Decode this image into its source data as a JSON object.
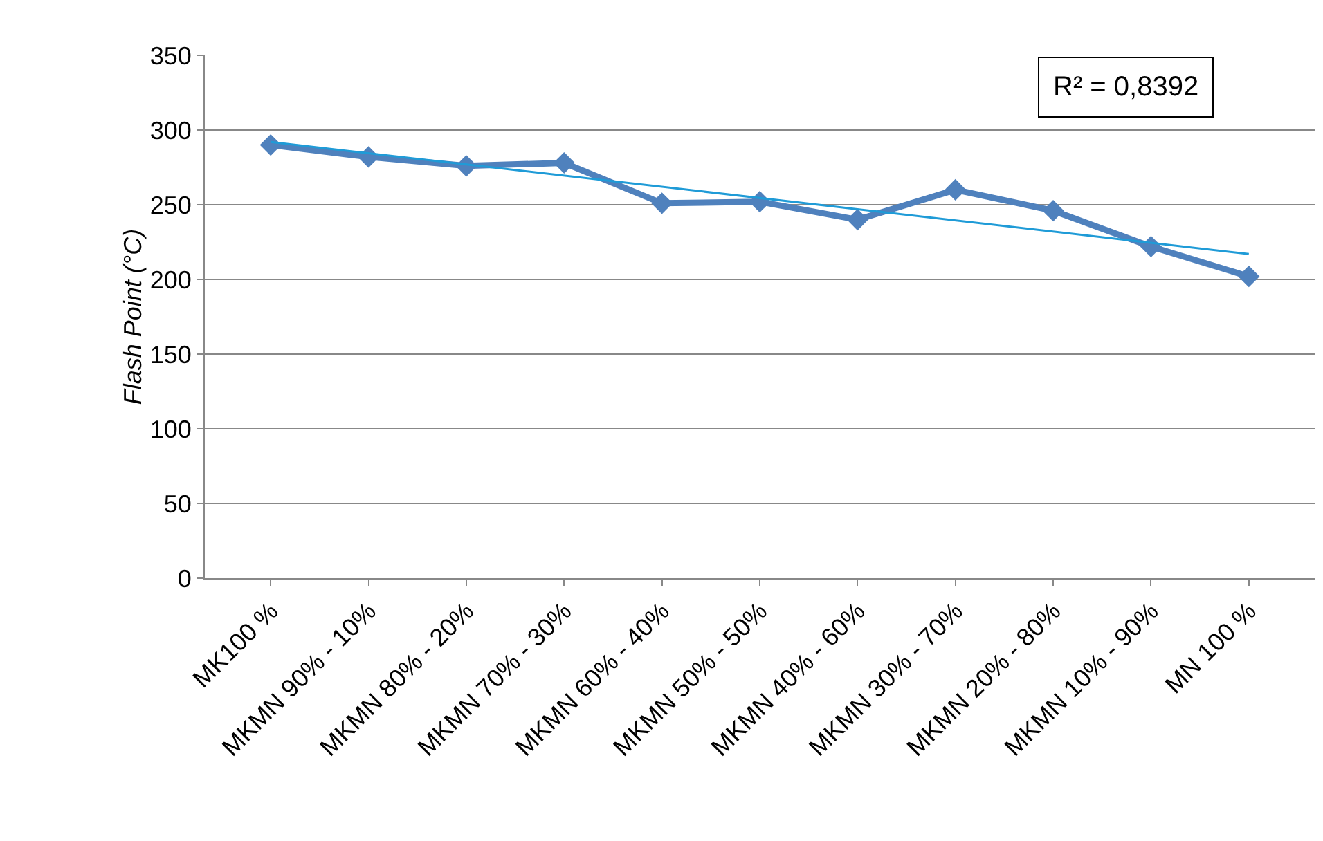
{
  "chart_data": {
    "type": "line",
    "ylabel": "Flash Point (°C)",
    "categories": [
      "MK100 %",
      "MKMN 90% - 10%",
      "MKMN 80% - 20%",
      "MKMN 70% - 30%",
      "MKMN 60% - 40%",
      "MKMN 50% - 50%",
      "MKMN 40% - 60%",
      "MKMN 30% - 70%",
      "MKMN 20% - 80%",
      "MKMN 10% - 90%",
      "MN 100 %"
    ],
    "series": [
      {
        "color": "#4f81bd",
        "values": [
          290,
          282,
          276,
          278,
          251,
          252,
          240,
          260,
          246,
          222,
          202
        ]
      },
      {
        "type": "line",
        "color": "#1f9bd7",
        "marker": "none",
        "x": [
          "MK100 %",
          "MN 100 %"
        ],
        "values": [
          292,
          217
        ]
      }
    ],
    "ylim": [
      0,
      350
    ],
    "yticks": [
      0,
      50,
      100,
      150,
      200,
      250,
      300,
      350
    ],
    "grid": "y",
    "marker": "diamond",
    "annotations": [
      "R² = 0,8392"
    ]
  }
}
